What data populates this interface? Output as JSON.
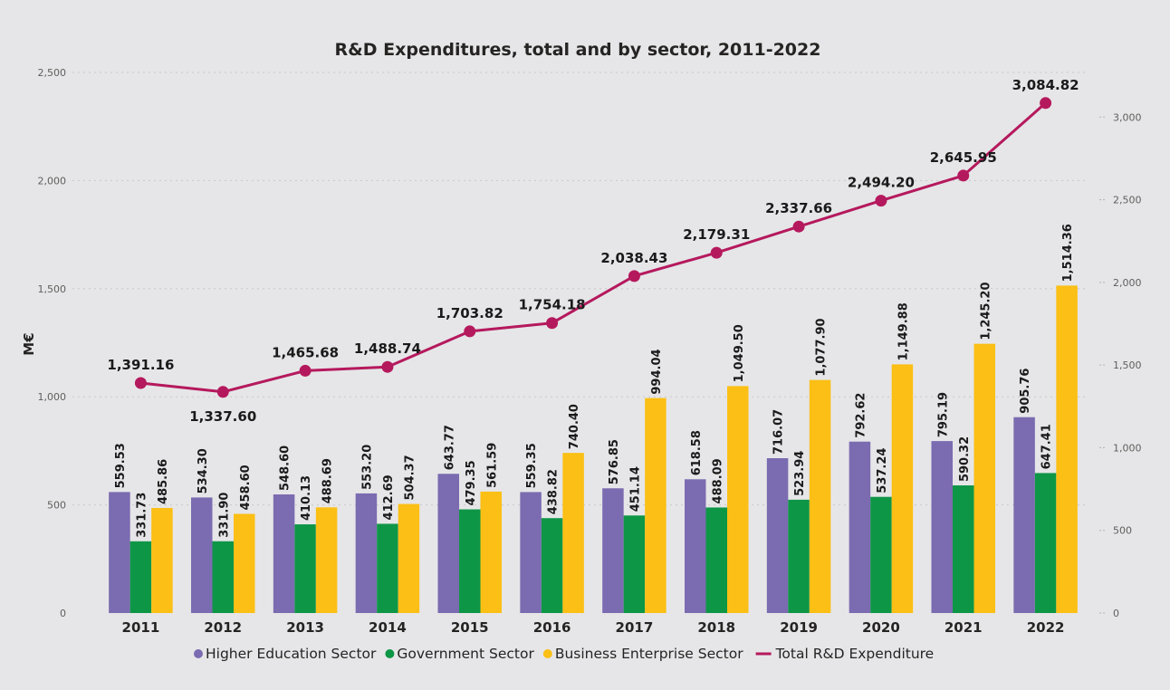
{
  "chart_data": {
    "type": "bar",
    "title": "R&D Expenditures, total and by sector, 2011-2022",
    "ylabel": "M€",
    "xlabel": "",
    "categories": [
      "2011",
      "2012",
      "2013",
      "2014",
      "2015",
      "2016",
      "2017",
      "2018",
      "2019",
      "2020",
      "2021",
      "2022"
    ],
    "ylim": [
      0,
      2500
    ],
    "yticks": [
      0,
      500,
      1000,
      1500,
      2000,
      2500
    ],
    "ytick_labels": [
      "0",
      "500",
      "1,000",
      "1,500",
      "2,000",
      "2,500"
    ],
    "y2lim": [
      0,
      3270
    ],
    "y2ticks": [
      0,
      500,
      1000,
      1500,
      2000,
      2500,
      3000
    ],
    "y2tick_labels": [
      "0",
      "500",
      "1,000",
      "1,500",
      "2,000",
      "2,500",
      "3,000"
    ],
    "grid": true,
    "legend_position": "bottom",
    "series": [
      {
        "name": "Higher Education Sector",
        "type": "bar",
        "axis": "left",
        "color": "#7b6bb0",
        "values": [
          559.53,
          534.3,
          548.6,
          553.2,
          643.77,
          559.35,
          576.85,
          618.58,
          716.07,
          792.62,
          795.19,
          905.76
        ],
        "labels": [
          "559.53",
          "534.30",
          "548.60",
          "553.20",
          "643.77",
          "559.35",
          "576.85",
          "618.58",
          "716.07",
          "792.62",
          "795.19",
          "905.76"
        ]
      },
      {
        "name": "Government Sector",
        "type": "bar",
        "axis": "left",
        "color": "#0e9647",
        "values": [
          331.73,
          331.9,
          410.13,
          412.69,
          479.35,
          438.82,
          451.14,
          488.09,
          523.94,
          537.24,
          590.32,
          647.41
        ],
        "labels": [
          "331.73",
          "331.90",
          "410.13",
          "412.69",
          "479.35",
          "438.82",
          "451.14",
          "488.09",
          "523.94",
          "537.24",
          "590.32",
          "647.41"
        ]
      },
      {
        "name": "Business Enterprise Sector",
        "type": "bar",
        "axis": "left",
        "color": "#fbbf15",
        "values": [
          485.86,
          458.6,
          488.69,
          504.37,
          561.59,
          740.4,
          994.04,
          1049.5,
          1077.9,
          1149.88,
          1245.2,
          1514.36
        ],
        "labels": [
          "485.86",
          "458.60",
          "488.69",
          "504.37",
          "561.59",
          "740.40",
          "994.04",
          "1,049.50",
          "1,077.90",
          "1,149.88",
          "1,245.20",
          "1,514.36"
        ]
      },
      {
        "name": "Total R&D Expenditure",
        "type": "line",
        "axis": "right",
        "color": "#b5195d",
        "values": [
          1391.16,
          1337.6,
          1465.68,
          1488.74,
          1703.82,
          1754.18,
          2038.43,
          2179.31,
          2337.66,
          2494.2,
          2645.95,
          3084.82
        ],
        "labels": [
          "1,391.16",
          "1,337.60",
          "1,465.68",
          "1,488.74",
          "1,703.82",
          "1,754.18",
          "2,038.43",
          "2,179.31",
          "2,337.66",
          "2,494.20",
          "2,645.95",
          "3,084.82"
        ]
      }
    ]
  }
}
